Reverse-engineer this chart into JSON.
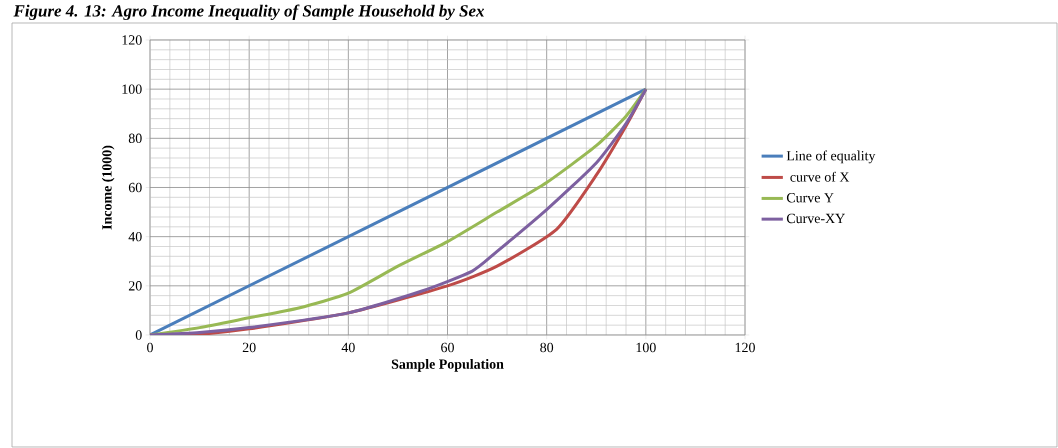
{
  "chart_data": {
    "type": "line",
    "title": "Figure 4. 13: Agro Income Inequality of Sample Household by Sex",
    "xlabel": "Sample Population",
    "ylabel": "Income (1000)",
    "xlim": [
      0,
      120
    ],
    "ylim": [
      0,
      120
    ],
    "xticks": [
      0,
      20,
      40,
      60,
      80,
      100,
      120
    ],
    "yticks": [
      0,
      20,
      40,
      60,
      80,
      100,
      120
    ],
    "grid": true,
    "legend": "right",
    "series": [
      {
        "name": "Line of equality",
        "color": "#4a7ebb",
        "x": [
          0,
          100
        ],
        "values": [
          0,
          100
        ]
      },
      {
        "name": " curve of X",
        "color": "#be4b48",
        "x": [
          0,
          8,
          20,
          40,
          60,
          70,
          82,
          90,
          96,
          100
        ],
        "values": [
          0,
          0,
          2.5,
          9,
          20,
          28,
          43,
          65,
          85,
          100
        ]
      },
      {
        "name": "Curve Y",
        "color": "#98b954",
        "x": [
          0,
          10,
          20,
          30,
          40,
          50,
          60,
          70,
          80,
          90,
          96,
          100
        ],
        "values": [
          0,
          3,
          7,
          11,
          17,
          28,
          38,
          50,
          62,
          77,
          89,
          100
        ]
      },
      {
        "name": "Curve-XY",
        "color": "#7d60a0",
        "x": [
          0,
          10,
          20,
          40,
          55,
          65,
          70,
          80,
          90,
          96,
          100
        ],
        "values": [
          0,
          1,
          3,
          9,
          18,
          26,
          34,
          51,
          70,
          86,
          100
        ]
      }
    ]
  }
}
